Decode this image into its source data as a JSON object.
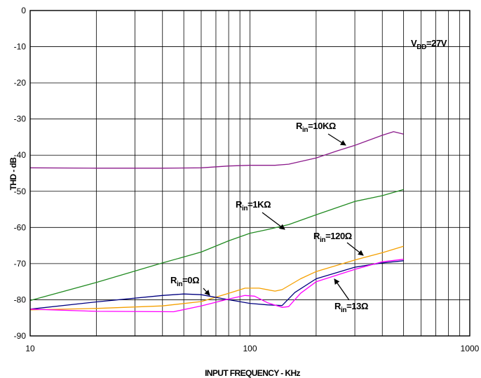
{
  "chart_data": {
    "type": "line",
    "xlabel": "INPUT FREQUENCY - KHz",
    "ylabel": "THD - dB",
    "xscale": "log",
    "xlim": [
      10,
      1000
    ],
    "ylim": [
      -90,
      0
    ],
    "grid": true,
    "x_ticks": [
      {
        "value": 10,
        "label": "10"
      },
      {
        "value": 100,
        "label": "100"
      },
      {
        "value": 1000,
        "label": "1000"
      }
    ],
    "y_ticks": [
      0,
      -10,
      -20,
      -30,
      -40,
      -50,
      -60,
      -70,
      -80,
      -90
    ],
    "colors": {
      "rin_10k": "#8b1a8b",
      "rin_1k": "#228b22",
      "rin_120": "#f5a000",
      "rin_0": "#000080",
      "rin_13": "#ff00ff"
    },
    "annotations": [
      {
        "id": "vdd",
        "base": "V",
        "sub": "DD",
        "rest": "=27V"
      },
      {
        "id": "rin_10k",
        "base": "R",
        "sub": "in",
        "rest": "=10KΩ"
      },
      {
        "id": "rin_1k",
        "base": "R",
        "sub": "in",
        "rest": "=1KΩ"
      },
      {
        "id": "rin_120",
        "base": "R",
        "sub": "in",
        "rest": "=120Ω"
      },
      {
        "id": "rin_0",
        "base": "R",
        "sub": "in",
        "rest": "=0Ω"
      },
      {
        "id": "rin_13",
        "base": "R",
        "sub": "in",
        "rest": "=13Ω"
      }
    ],
    "series": [
      {
        "key": "rin_10k",
        "x": [
          10,
          20,
          40,
          60,
          80,
          100,
          130,
          150,
          200,
          250,
          300,
          400,
          450,
          500
        ],
        "y": [
          -43.5,
          -43.6,
          -43.6,
          -43.5,
          -43.0,
          -42.8,
          -42.8,
          -42.5,
          -40.8,
          -38.8,
          -37.3,
          -34.5,
          -33.5,
          -34.2
        ]
      },
      {
        "key": "rin_1k",
        "x": [
          10,
          20,
          40,
          60,
          80,
          100,
          120,
          150,
          200,
          300,
          400,
          500
        ],
        "y": [
          -80.2,
          -75.2,
          -69.8,
          -66.8,
          -63.7,
          -61.6,
          -60.6,
          -59.2,
          -56.5,
          -52.8,
          -51.2,
          -49.5
        ]
      },
      {
        "key": "rin_120",
        "x": [
          10,
          20,
          40,
          60,
          80,
          95,
          110,
          130,
          140,
          170,
          200,
          300,
          400,
          500
        ],
        "y": [
          -82.8,
          -82.4,
          -81.7,
          -80.5,
          -78.2,
          -76.8,
          -76.8,
          -77.6,
          -77.2,
          -74.2,
          -72.2,
          -69.0,
          -67.0,
          -65.2
        ]
      },
      {
        "key": "rin_0",
        "x": [
          10,
          20,
          40,
          50,
          60,
          80,
          100,
          120,
          140,
          160,
          200,
          300,
          400,
          500
        ],
        "y": [
          -82.6,
          -80.6,
          -78.8,
          -78.4,
          -78.6,
          -80.0,
          -81.0,
          -81.4,
          -81.6,
          -78.0,
          -74.2,
          -71.0,
          -69.8,
          -69.2
        ]
      },
      {
        "key": "rin_13",
        "x": [
          10,
          20,
          45,
          60,
          80,
          95,
          105,
          120,
          140,
          150,
          170,
          200,
          300,
          400,
          500
        ],
        "y": [
          -82.6,
          -83.2,
          -83.3,
          -81.7,
          -79.8,
          -78.8,
          -79.0,
          -80.8,
          -82.1,
          -81.9,
          -78.2,
          -75.0,
          -71.6,
          -69.5,
          -68.8
        ]
      }
    ]
  }
}
